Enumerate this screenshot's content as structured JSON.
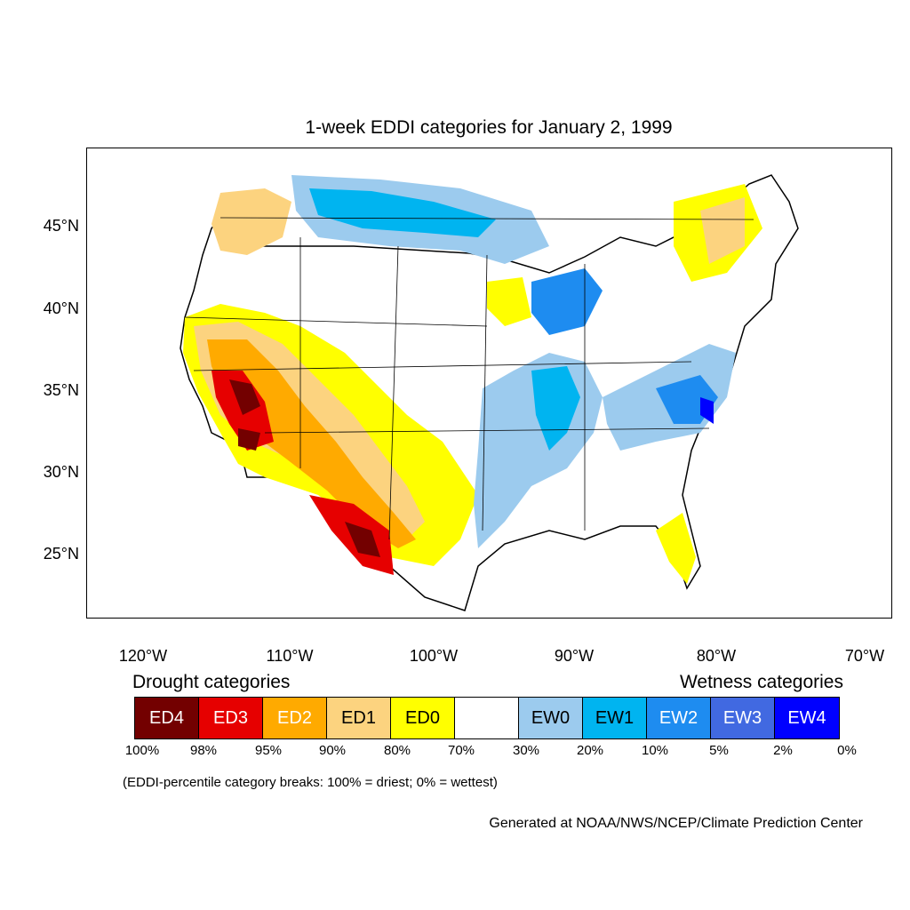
{
  "title": "1-week EDDI categories for January 2, 1999",
  "lat_labels": [
    "45°N",
    "40°N",
    "35°N",
    "30°N",
    "25°N"
  ],
  "lon_labels": [
    "120°W",
    "110°W",
    "100°W",
    "90°W",
    "80°W",
    "70°W"
  ],
  "legend": {
    "drought_heading": "Drought categories",
    "wetness_heading": "Wetness categories",
    "categories": [
      {
        "label": "ED4",
        "color": "#730000",
        "text_color": "#ffffff"
      },
      {
        "label": "ED3",
        "color": "#e60000",
        "text_color": "#ffffff"
      },
      {
        "label": "ED2",
        "color": "#ffaa00",
        "text_color": "#ffffff"
      },
      {
        "label": "ED1",
        "color": "#fcd37f",
        "text_color": "#000000"
      },
      {
        "label": "ED0",
        "color": "#ffff00",
        "text_color": "#000000"
      },
      {
        "label": "",
        "color": "#ffffff",
        "text_color": "#000000"
      },
      {
        "label": "EW0",
        "color": "#9ccbee",
        "text_color": "#000000"
      },
      {
        "label": "EW1",
        "color": "#00b4f0",
        "text_color": "#000000"
      },
      {
        "label": "EW2",
        "color": "#1e8cf0",
        "text_color": "#ffffff"
      },
      {
        "label": "EW3",
        "color": "#4169e1",
        "text_color": "#ffffff"
      },
      {
        "label": "EW4",
        "color": "#0000ff",
        "text_color": "#ffffff"
      }
    ],
    "breaks": [
      "100%",
      "98%",
      "95%",
      "90%",
      "80%",
      "70%",
      "30%",
      "20%",
      "10%",
      "5%",
      "2%",
      "0%"
    ]
  },
  "note": "(EDDI-percentile category breaks: 100% = driest; 0% = wettest)",
  "credit": "Generated at NOAA/NWS/NCEP/Climate Prediction Center"
}
